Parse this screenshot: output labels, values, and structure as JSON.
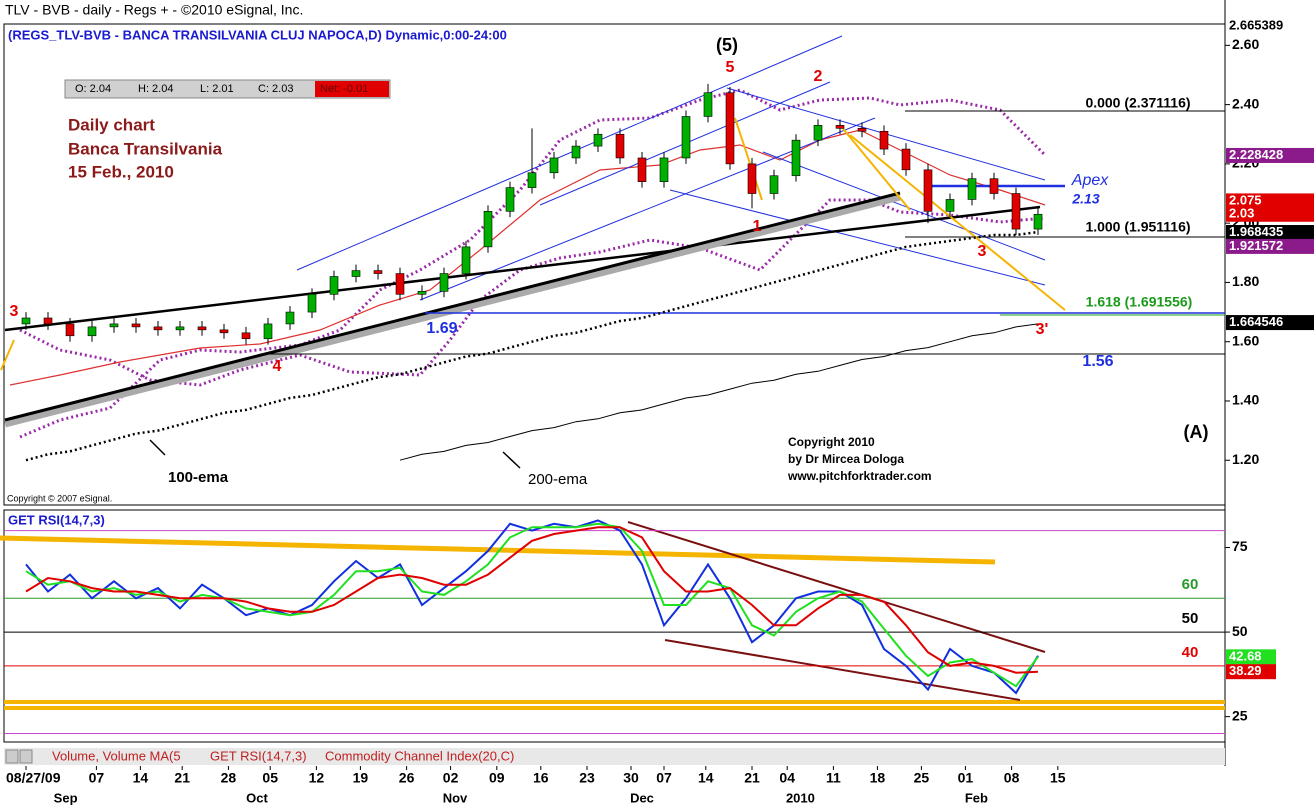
{
  "header": {
    "title": "TLV - BVB - daily - Regs + - ©2010 eSignal, Inc.",
    "subtitle": "(REGS_TLV-BVB - BANCA TRANSILVANIA CLUJ NAPOCA,D) Dynamic,0:00-24:00"
  },
  "ohlc": [
    "O: 2.04",
    "H: 2.04",
    "L: 2.01",
    "C: 2.03",
    "Net: -0.01"
  ],
  "notes": {
    "commentary": [
      "Daily chart",
      "Banca Transilvania",
      "15 Feb., 2010"
    ],
    "copyright": [
      "Copyright 2010",
      "by Dr Mircea Dologa",
      "www.pitchforktrader.com"
    ],
    "esignal": "Copyright © 2007 eSignal."
  },
  "annotations": [
    "(5)",
    "5",
    "2",
    "1",
    "3",
    "3'",
    "4",
    "3",
    "Apex",
    "2.13",
    "1.69",
    "1.56",
    "0.000 (2.371116)",
    "1.000 (1.951116)",
    "1.618 (1.691556)",
    "(A)"
  ],
  "tabs": [
    "Volume, Volume MA(5",
    "GET RSI(14,7,3)",
    "Commodity Channel Index(20,C)"
  ],
  "chart_data": [
    {
      "type": "candlestick",
      "up_color": "#00b000",
      "down_color": "#e00000",
      "open": [
        1.66,
        1.68,
        1.66,
        1.62,
        1.65,
        1.66,
        1.65,
        1.64,
        1.65,
        1.64,
        1.63,
        1.61,
        1.66,
        1.7,
        1.76,
        1.82,
        1.84,
        1.83,
        1.76,
        1.77,
        1.83,
        1.92,
        2.04,
        2.12,
        2.17,
        2.22,
        2.26,
        2.3,
        2.22,
        2.14,
        2.22,
        2.36,
        2.44,
        2.2,
        2.1,
        2.16,
        2.28,
        2.33,
        2.32,
        2.31,
        2.25,
        2.18,
        2.04,
        2.08,
        2.15,
        2.1,
        1.98
      ],
      "high": [
        1.7,
        1.7,
        1.68,
        1.67,
        1.68,
        1.68,
        1.67,
        1.67,
        1.67,
        1.66,
        1.65,
        1.68,
        1.72,
        1.78,
        1.84,
        1.86,
        1.86,
        1.85,
        1.79,
        1.85,
        1.94,
        2.06,
        2.14,
        2.32,
        2.24,
        2.28,
        2.32,
        2.32,
        2.24,
        2.24,
        2.38,
        2.47,
        2.46,
        2.22,
        2.18,
        2.3,
        2.35,
        2.35,
        2.34,
        2.33,
        2.27,
        2.2,
        2.1,
        2.17,
        2.17,
        2.12,
        2.05
      ],
      "low": [
        1.64,
        1.64,
        1.6,
        1.6,
        1.63,
        1.63,
        1.62,
        1.62,
        1.62,
        1.61,
        1.59,
        1.59,
        1.64,
        1.68,
        1.74,
        1.8,
        1.81,
        1.74,
        1.74,
        1.75,
        1.81,
        1.9,
        2.02,
        2.1,
        2.15,
        2.2,
        2.24,
        2.2,
        2.12,
        2.12,
        2.2,
        2.34,
        2.18,
        2.05,
        2.08,
        2.14,
        2.26,
        2.3,
        2.29,
        2.23,
        2.16,
        2.0,
        2.02,
        2.06,
        2.08,
        1.96,
        1.96
      ],
      "close": [
        1.68,
        1.66,
        1.62,
        1.65,
        1.66,
        1.65,
        1.64,
        1.65,
        1.64,
        1.63,
        1.61,
        1.66,
        1.7,
        1.76,
        1.82,
        1.84,
        1.83,
        1.76,
        1.77,
        1.83,
        1.92,
        2.04,
        2.12,
        2.17,
        2.22,
        2.26,
        2.3,
        2.22,
        2.14,
        2.22,
        2.36,
        2.44,
        2.2,
        2.1,
        2.16,
        2.28,
        2.33,
        2.32,
        2.31,
        2.25,
        2.18,
        2.04,
        2.08,
        2.15,
        2.1,
        1.98,
        2.03
      ],
      "overlays": [
        {
          "name": "100-ema",
          "color": "#000000",
          "dash": "2 3",
          "values": [
            1.2,
            1.22,
            1.23,
            1.25,
            1.27,
            1.29,
            1.3,
            1.32,
            1.34,
            1.36,
            1.37,
            1.39,
            1.41,
            1.42,
            1.44,
            1.46,
            1.48,
            1.49,
            1.51,
            1.53,
            1.55,
            1.56,
            1.58,
            1.6,
            1.62,
            1.63,
            1.65,
            1.67,
            1.68,
            1.7,
            1.72,
            1.74,
            1.76,
            1.78,
            1.8,
            1.82,
            1.84,
            1.86,
            1.88,
            1.9,
            1.92,
            1.93,
            1.94,
            1.95,
            1.96,
            1.96,
            1.97
          ]
        },
        {
          "name": "200-ema",
          "color": "#000000",
          "dash": "",
          "values": [
            null,
            null,
            null,
            null,
            null,
            null,
            null,
            null,
            null,
            null,
            null,
            null,
            null,
            null,
            null,
            null,
            null,
            1.2,
            1.22,
            1.23,
            1.25,
            1.26,
            1.28,
            1.3,
            1.31,
            1.33,
            1.34,
            1.36,
            1.37,
            1.39,
            1.41,
            1.42,
            1.44,
            1.46,
            1.47,
            1.49,
            1.5,
            1.52,
            1.54,
            1.55,
            1.57,
            1.58,
            1.6,
            1.62,
            1.63,
            1.65,
            1.66
          ]
        }
      ],
      "price_tags": [
        {
          "value": 2.665389,
          "color": "#ffffff"
        },
        {
          "value": 2.228428,
          "color": "#8b1a8b"
        },
        {
          "value": 2.075,
          "color": "#e00000"
        },
        {
          "value": 2.03,
          "color": "#e00000"
        },
        {
          "value": 1.968435,
          "color": "#000000"
        },
        {
          "value": 1.921572,
          "color": "#8b1a8b"
        },
        {
          "value": 1.664546,
          "color": "#000000"
        }
      ],
      "xlim": [
        -1,
        54.5
      ],
      "ylim": [
        1.049,
        2.672
      ],
      "yticks": [
        {
          "value": 1.2,
          "label": "1.20"
        },
        {
          "value": 1.4,
          "label": "1.40"
        },
        {
          "value": 1.6,
          "label": "1.60"
        },
        {
          "value": 1.8,
          "label": "1.80"
        },
        {
          "value": 2.0,
          "label": "2.00"
        },
        {
          "value": 2.2,
          "label": "2.20"
        },
        {
          "value": 2.4,
          "label": "2.40"
        },
        {
          "value": 2.6,
          "label": "2.60"
        }
      ],
      "xticks": [
        {
          "value": 0,
          "label": "08/27/09"
        },
        {
          "value": 3.2,
          "label": "07"
        },
        {
          "value": 5.2,
          "label": "14"
        },
        {
          "value": 7.1,
          "label": "21"
        },
        {
          "value": 9.2,
          "label": "28"
        },
        {
          "value": 11.1,
          "label": "05"
        },
        {
          "value": 13.2,
          "label": "12"
        },
        {
          "value": 15.2,
          "label": "19"
        },
        {
          "value": 17.3,
          "label": "26"
        },
        {
          "value": 19.3,
          "label": "02"
        },
        {
          "value": 21.4,
          "label": "09"
        },
        {
          "value": 23.4,
          "label": "16"
        },
        {
          "value": 25.5,
          "label": "23"
        },
        {
          "value": 27.5,
          "label": "30"
        },
        {
          "value": 29.0,
          "label": "07"
        },
        {
          "value": 30.9,
          "label": "14"
        },
        {
          "value": 33.0,
          "label": "21"
        },
        {
          "value": 34.6,
          "label": "04"
        },
        {
          "value": 36.7,
          "label": "11"
        },
        {
          "value": 38.7,
          "label": "18"
        },
        {
          "value": 40.7,
          "label": "25"
        },
        {
          "value": 42.7,
          "label": "01"
        },
        {
          "value": 44.8,
          "label": "08"
        },
        {
          "value": 46.9,
          "label": "15"
        }
      ],
      "months": [
        {
          "value": 1.8,
          "label": "Sep"
        },
        {
          "value": 10.5,
          "label": "Oct"
        },
        {
          "value": 19.5,
          "label": "Nov"
        },
        {
          "value": 28,
          "label": "Dec"
        },
        {
          "value": 35.2,
          "label": "2010"
        },
        {
          "value": 43.2,
          "label": "Feb"
        }
      ]
    },
    {
      "type": "line",
      "title": "GET RSI(14,7,3)",
      "xlim": [
        -1,
        54.5
      ],
      "ylim": [
        17.5,
        85.5
      ],
      "yticks": [
        25,
        50,
        75
      ],
      "levels": [
        {
          "value": 80,
          "color": "#cc44cc",
          "show_label": false
        },
        {
          "value": 60,
          "color": "#2a9a2a",
          "show_label": true
        },
        {
          "value": 50,
          "color": "#000000",
          "show_label": true
        },
        {
          "value": 40,
          "color": "#e00000",
          "show_label": true
        },
        {
          "value": 20,
          "color": "#cc44cc",
          "show_label": false
        }
      ],
      "series": [
        {
          "name": "RSI",
          "color": "#1030e0",
          "tag": false,
          "values": [
            70,
            62,
            67,
            60,
            65,
            60,
            63,
            57,
            64,
            60,
            55,
            57,
            55,
            58,
            65,
            71,
            66,
            70,
            58,
            63,
            68,
            74,
            82,
            80,
            82,
            81,
            83,
            80,
            70,
            52,
            60,
            70,
            60,
            47,
            52,
            60,
            62,
            62,
            58,
            45,
            40,
            33,
            45,
            40,
            38,
            32,
            43
          ]
        },
        {
          "name": "green",
          "color": "#20e020",
          "tag": true,
          "values": [
            68,
            64,
            65,
            62,
            63,
            61,
            62,
            59,
            61,
            60,
            57,
            56,
            55,
            56,
            61,
            68,
            68,
            69,
            62,
            61,
            65,
            70,
            78,
            81,
            81,
            81,
            82,
            81,
            74,
            58,
            58,
            65,
            63,
            52,
            49,
            56,
            60,
            62,
            59,
            51,
            43,
            37,
            41,
            42,
            38,
            34,
            42.68
          ]
        },
        {
          "name": "red",
          "color": "#e00000",
          "tag": true,
          "values": [
            62,
            66,
            65,
            63,
            62,
            62,
            61,
            60,
            60,
            60,
            59,
            57,
            56,
            56,
            58,
            62,
            66,
            67,
            66,
            64,
            64,
            67,
            72,
            77,
            79,
            80,
            81,
            81,
            78,
            68,
            62,
            62,
            63,
            58,
            52,
            52,
            57,
            61,
            61,
            59,
            52,
            44,
            40,
            41,
            40,
            38,
            38.29
          ]
        }
      ]
    }
  ]
}
